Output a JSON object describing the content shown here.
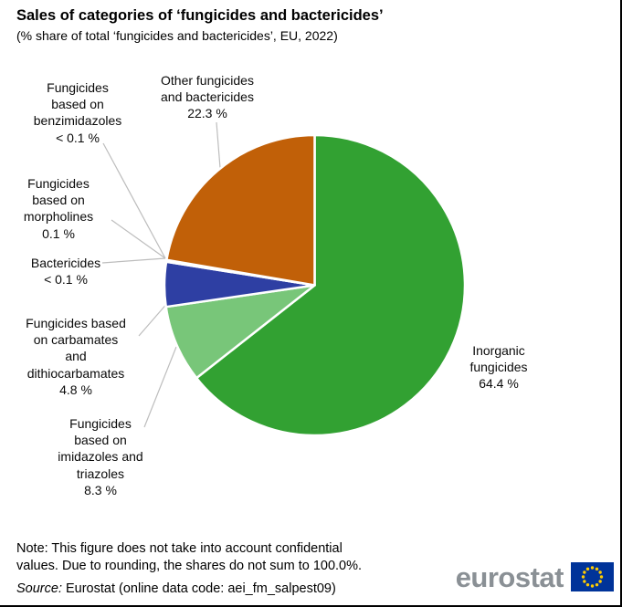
{
  "header": {
    "title": "Sales of categories of ‘fungicides and bactericides’",
    "subtitle": "(% share of total ‘fungicides and bactericides’, EU, 2022)"
  },
  "chart_data": {
    "type": "pie",
    "title": "Sales of categories of ‘fungicides and bactericides’",
    "subtitle": "(% share of total ‘fungicides and bactericides’, EU, 2022)",
    "unit": "% share of total",
    "direction": "clockwise",
    "start_angle_deg": 0,
    "legend_position": "callout-labels-with-leader-lines",
    "slices": [
      {
        "id": "inorganic",
        "label": "Inorganic fungicides",
        "value": 64.4,
        "display_value": "64.4 %",
        "color": "#32A132",
        "callout_text": "Inorganic\nfungicides\n64.4 %"
      },
      {
        "id": "imidazoles",
        "label": "Fungicides based on imidazoles and triazoles",
        "value": 8.3,
        "display_value": "8.3 %",
        "color": "#78C679",
        "callout_text": "Fungicides\nbased on\nimidazoles and\ntriazoles\n8.3 %"
      },
      {
        "id": "carbamates",
        "label": "Fungicides based on carbamates and dithiocarbamates",
        "value": 4.8,
        "display_value": "4.8 %",
        "color": "#2E3FA3",
        "callout_text": "Fungicides based\non carbamates\nand\ndithiocarbamates\n4.8 %"
      },
      {
        "id": "bactericides",
        "label": "Bactericides",
        "value": 0.05,
        "display_value": "< 0.1 %",
        "color": "#FFFFFF",
        "callout_text": "Bactericides\n< 0.1 %"
      },
      {
        "id": "morpholines",
        "label": "Fungicides based on morpholines",
        "value": 0.1,
        "display_value": "0.1 %",
        "color": "#FFFFFF",
        "callout_text": "Fungicides\nbased on\nmorpholines\n0.1 %"
      },
      {
        "id": "benzimidazoles",
        "label": "Fungicides based on benzimidazoles",
        "value": 0.05,
        "display_value": "< 0.1 %",
        "color": "#FFFFFF",
        "callout_text": "Fungicides\nbased on\nbenzimidazoles\n< 0.1 %"
      },
      {
        "id": "other",
        "label": "Other fungicides and bactericides",
        "value": 22.3,
        "display_value": "22.3 %",
        "color": "#C16008",
        "callout_text": "Other fungicides\nand bactericides\n22.3 %"
      }
    ],
    "colors": {
      "leader_line": "#BDBDBD",
      "slice_border": "#FFFFFF"
    }
  },
  "footer": {
    "note": "Note: This figure does not take into account confidential\nvalues. Due to rounding, the shares do not sum to 100.0%.",
    "source_label": "Source:",
    "source_text": "Eurostat (online data code: aei_fm_salpest09)",
    "logo_text": "eurostat",
    "flag_colors": {
      "field": "#003399",
      "stars": "#FFCC00"
    }
  }
}
